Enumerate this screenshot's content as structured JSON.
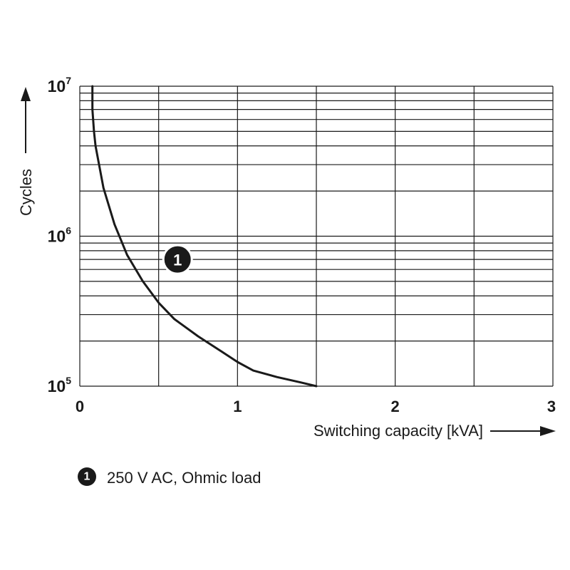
{
  "chart_data": {
    "type": "line",
    "xlabel": "Switching capacity [kVA]",
    "ylabel": "Cycles",
    "x_ticks": [
      "0",
      "1",
      "2",
      "3"
    ],
    "y_ticks": [
      {
        "base": "10",
        "exp": "5",
        "value": 100000
      },
      {
        "base": "10",
        "exp": "6",
        "value": 1000000
      },
      {
        "base": "10",
        "exp": "7",
        "value": 10000000
      }
    ],
    "xlim": [
      0,
      3
    ],
    "ylim": [
      100000,
      10000000
    ],
    "y_scale": "log",
    "grid": true,
    "series": [
      {
        "marker": "1",
        "color": "#1a1a1a",
        "x": [
          0.08,
          0.08,
          0.09,
          0.1,
          0.15,
          0.22,
          0.3,
          0.4,
          0.5,
          0.6,
          0.75,
          0.9,
          1.0,
          1.1,
          1.25,
          1.4,
          1.5
        ],
        "y": [
          10000000,
          7000000,
          5000000,
          4000000,
          2100000,
          1200000,
          750000,
          500000,
          360000,
          280000,
          215000,
          170000,
          145000,
          127000,
          115000,
          106000,
          100000
        ]
      }
    ],
    "marker_position": {
      "x": 0.62,
      "y": 700000
    },
    "legend": [
      {
        "marker": "1",
        "label": "250 V AC, Ohmic load"
      }
    ]
  }
}
